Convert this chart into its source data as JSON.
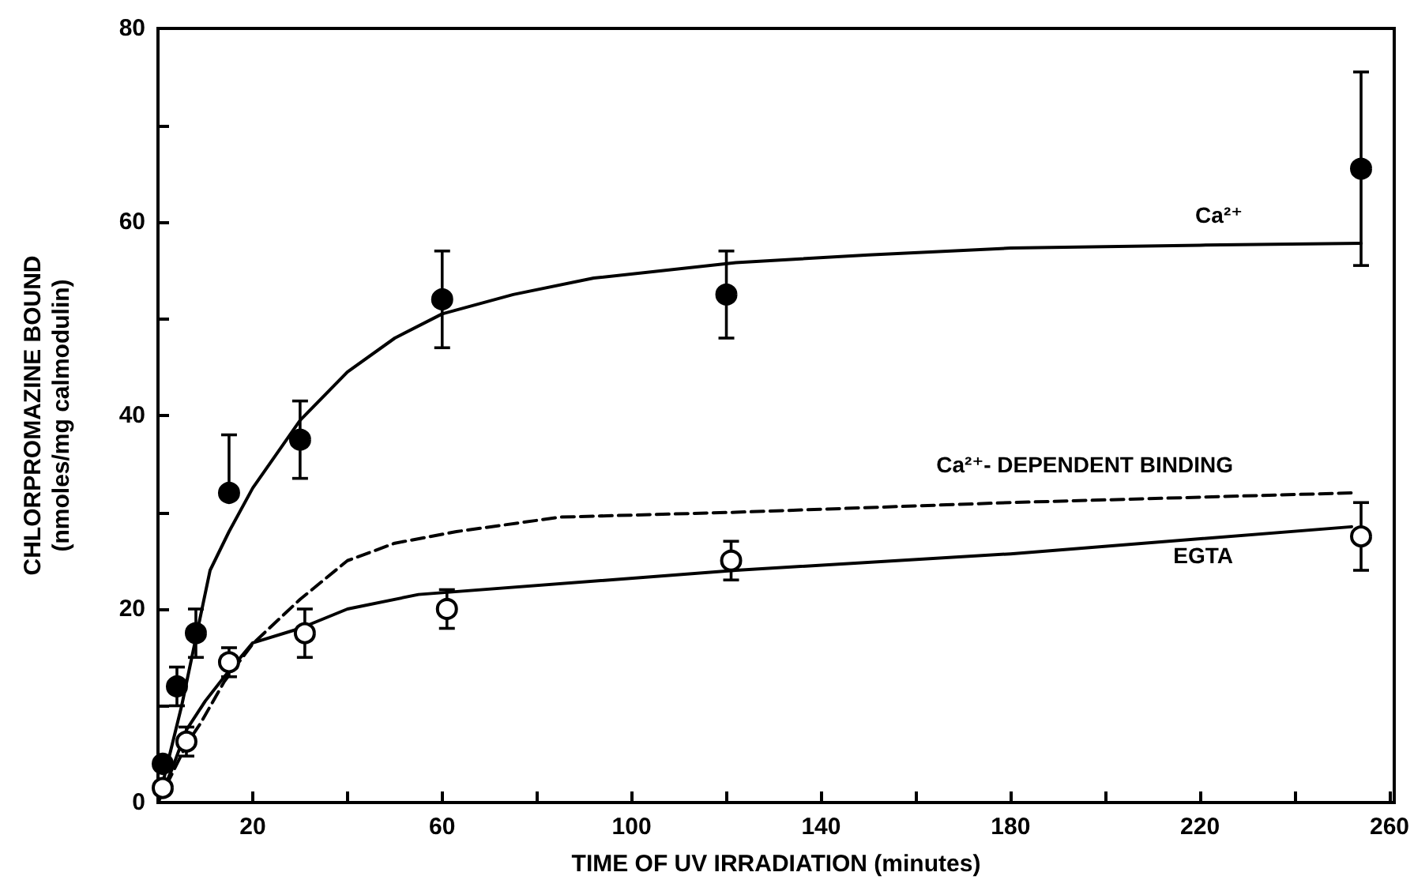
{
  "chart_data": {
    "type": "scatter",
    "xlabel": "TIME OF UV IRRADIATION (minutes)",
    "ylabel": "CHLORPROMAZINE BOUND\n(nmoles/mg calmodulin)",
    "xlim": [
      0,
      261
    ],
    "ylim": [
      0,
      80
    ],
    "xticks": [
      {
        "value": 20,
        "label": "20"
      },
      {
        "value": 40,
        "label": null
      },
      {
        "value": 60,
        "label": "60"
      },
      {
        "value": 80,
        "label": null
      },
      {
        "value": 100,
        "label": "100"
      },
      {
        "value": 120,
        "label": null
      },
      {
        "value": 140,
        "label": "140"
      },
      {
        "value": 160,
        "label": null
      },
      {
        "value": 180,
        "label": "180"
      },
      {
        "value": 200,
        "label": null
      },
      {
        "value": 220,
        "label": "220"
      },
      {
        "value": 240,
        "label": null
      },
      {
        "value": 260,
        "label": "260"
      }
    ],
    "yticks": [
      0,
      {
        "value": 10,
        "label": null
      },
      20,
      {
        "value": 30,
        "label": null
      },
      40,
      {
        "value": 50,
        "label": null
      },
      60,
      {
        "value": 70,
        "label": null
      },
      80
    ],
    "grid": false,
    "series": [
      {
        "type": "line",
        "name": "Ca²⁺",
        "marker": "none",
        "line_style": "solid",
        "color": "#000000",
        "x": [
          0,
          2,
          5,
          8,
          11,
          15,
          20,
          30,
          40,
          50,
          60,
          75,
          92,
          122,
          150,
          180,
          220,
          254
        ],
        "values": [
          0,
          4,
          10,
          17,
          24,
          28,
          32.5,
          39.5,
          44.5,
          48,
          50.5,
          52.5,
          54.2,
          55.8,
          56.6,
          57.3,
          57.6,
          57.8
        ]
      },
      {
        "type": "line",
        "name": "Ca²⁺- DEPENDENT BINDING",
        "marker": "none",
        "line_style": "dashed",
        "color": "#000000",
        "x": [
          0,
          3,
          6,
          9,
          14,
          20,
          30,
          40,
          50,
          63,
          85,
          122,
          180,
          252
        ],
        "values": [
          0,
          3,
          6,
          8.2,
          12.5,
          16.4,
          21,
          25,
          26.8,
          28,
          29.5,
          30,
          31,
          32
        ]
      },
      {
        "type": "line",
        "name": "EGTA",
        "marker": "none",
        "line_style": "solid",
        "color": "#000000",
        "x": [
          0,
          3,
          6,
          10,
          14,
          20,
          30,
          40,
          55,
          122,
          180,
          252
        ],
        "values": [
          0,
          3.5,
          7.5,
          10.5,
          13,
          16.5,
          18,
          20,
          21.5,
          24,
          25.7,
          28.5
        ]
      },
      {
        "marker": "circle",
        "color": "#000000",
        "x": [
          1,
          4,
          8,
          15,
          30,
          60,
          120,
          254
        ],
        "values": [
          4,
          12,
          17.5,
          32,
          37.5,
          52,
          52.5,
          65.5
        ],
        "errors": [
          null,
          2,
          2.5,
          [
            32,
            38
          ],
          4,
          5,
          4.5,
          10
        ]
      },
      {
        "marker": "circle",
        "color": "#ffffff",
        "x": [
          1,
          6,
          15,
          31,
          61,
          121,
          254
        ],
        "values": [
          1.5,
          6.3,
          14.5,
          17.5,
          20,
          25,
          27.5
        ],
        "errors": [
          null,
          1.5,
          1.5,
          2.5,
          2,
          2,
          3.5
        ]
      }
    ]
  }
}
